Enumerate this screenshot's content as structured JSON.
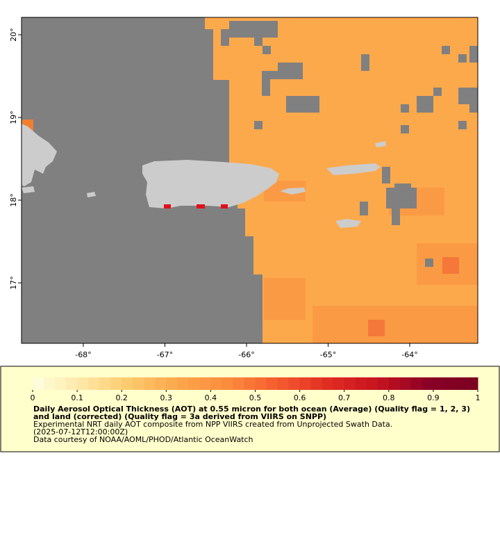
{
  "map": {
    "lon_range": [
      -68.757,
      -63.166
    ],
    "lat_range": [
      16.269,
      20.21
    ],
    "lon_ticks": [
      {
        "value": -68,
        "label": "-68°"
      },
      {
        "value": -67,
        "label": "-67°"
      },
      {
        "value": -66,
        "label": "-66°"
      },
      {
        "value": -65,
        "label": "-65°"
      },
      {
        "value": -64,
        "label": "-64°"
      }
    ],
    "lat_ticks": [
      {
        "value": 17,
        "label": "17°"
      },
      {
        "value": 18,
        "label": "18°"
      },
      {
        "value": 19,
        "label": "19°"
      },
      {
        "value": 20,
        "label": "20°"
      }
    ]
  },
  "colorbar": {
    "range": [
      0,
      1
    ],
    "ticks": [
      0,
      0.1,
      0.2,
      0.3,
      0.4,
      0.5,
      0.6,
      0.7,
      0.8,
      0.9,
      1
    ],
    "colors": [
      "#ffffe0",
      "#fee7a6",
      "#fdc86a",
      "#fca54a",
      "#fb8a3c",
      "#f45a2e",
      "#e02a22",
      "#c5131f",
      "#8a0026",
      "#7a0020"
    ]
  },
  "legend": {
    "title": "Daily Aerosol Optical Thickness (AOT) at 0.55 micron for both ocean (Average) (Quality flag = 1, 2, 3) and land (corrected) (Quality flag = 3a derived from VIIRS on SNPP)",
    "lines": [
      "Experimental NRT daily AOT composite from NPP VIIRS created from Unprojected Swath Data.",
      "(2025-07-12T12:00:00Z)",
      "Data courtesy of NOAA/AOML/PHOD/Atlantic OceanWatch"
    ]
  }
}
